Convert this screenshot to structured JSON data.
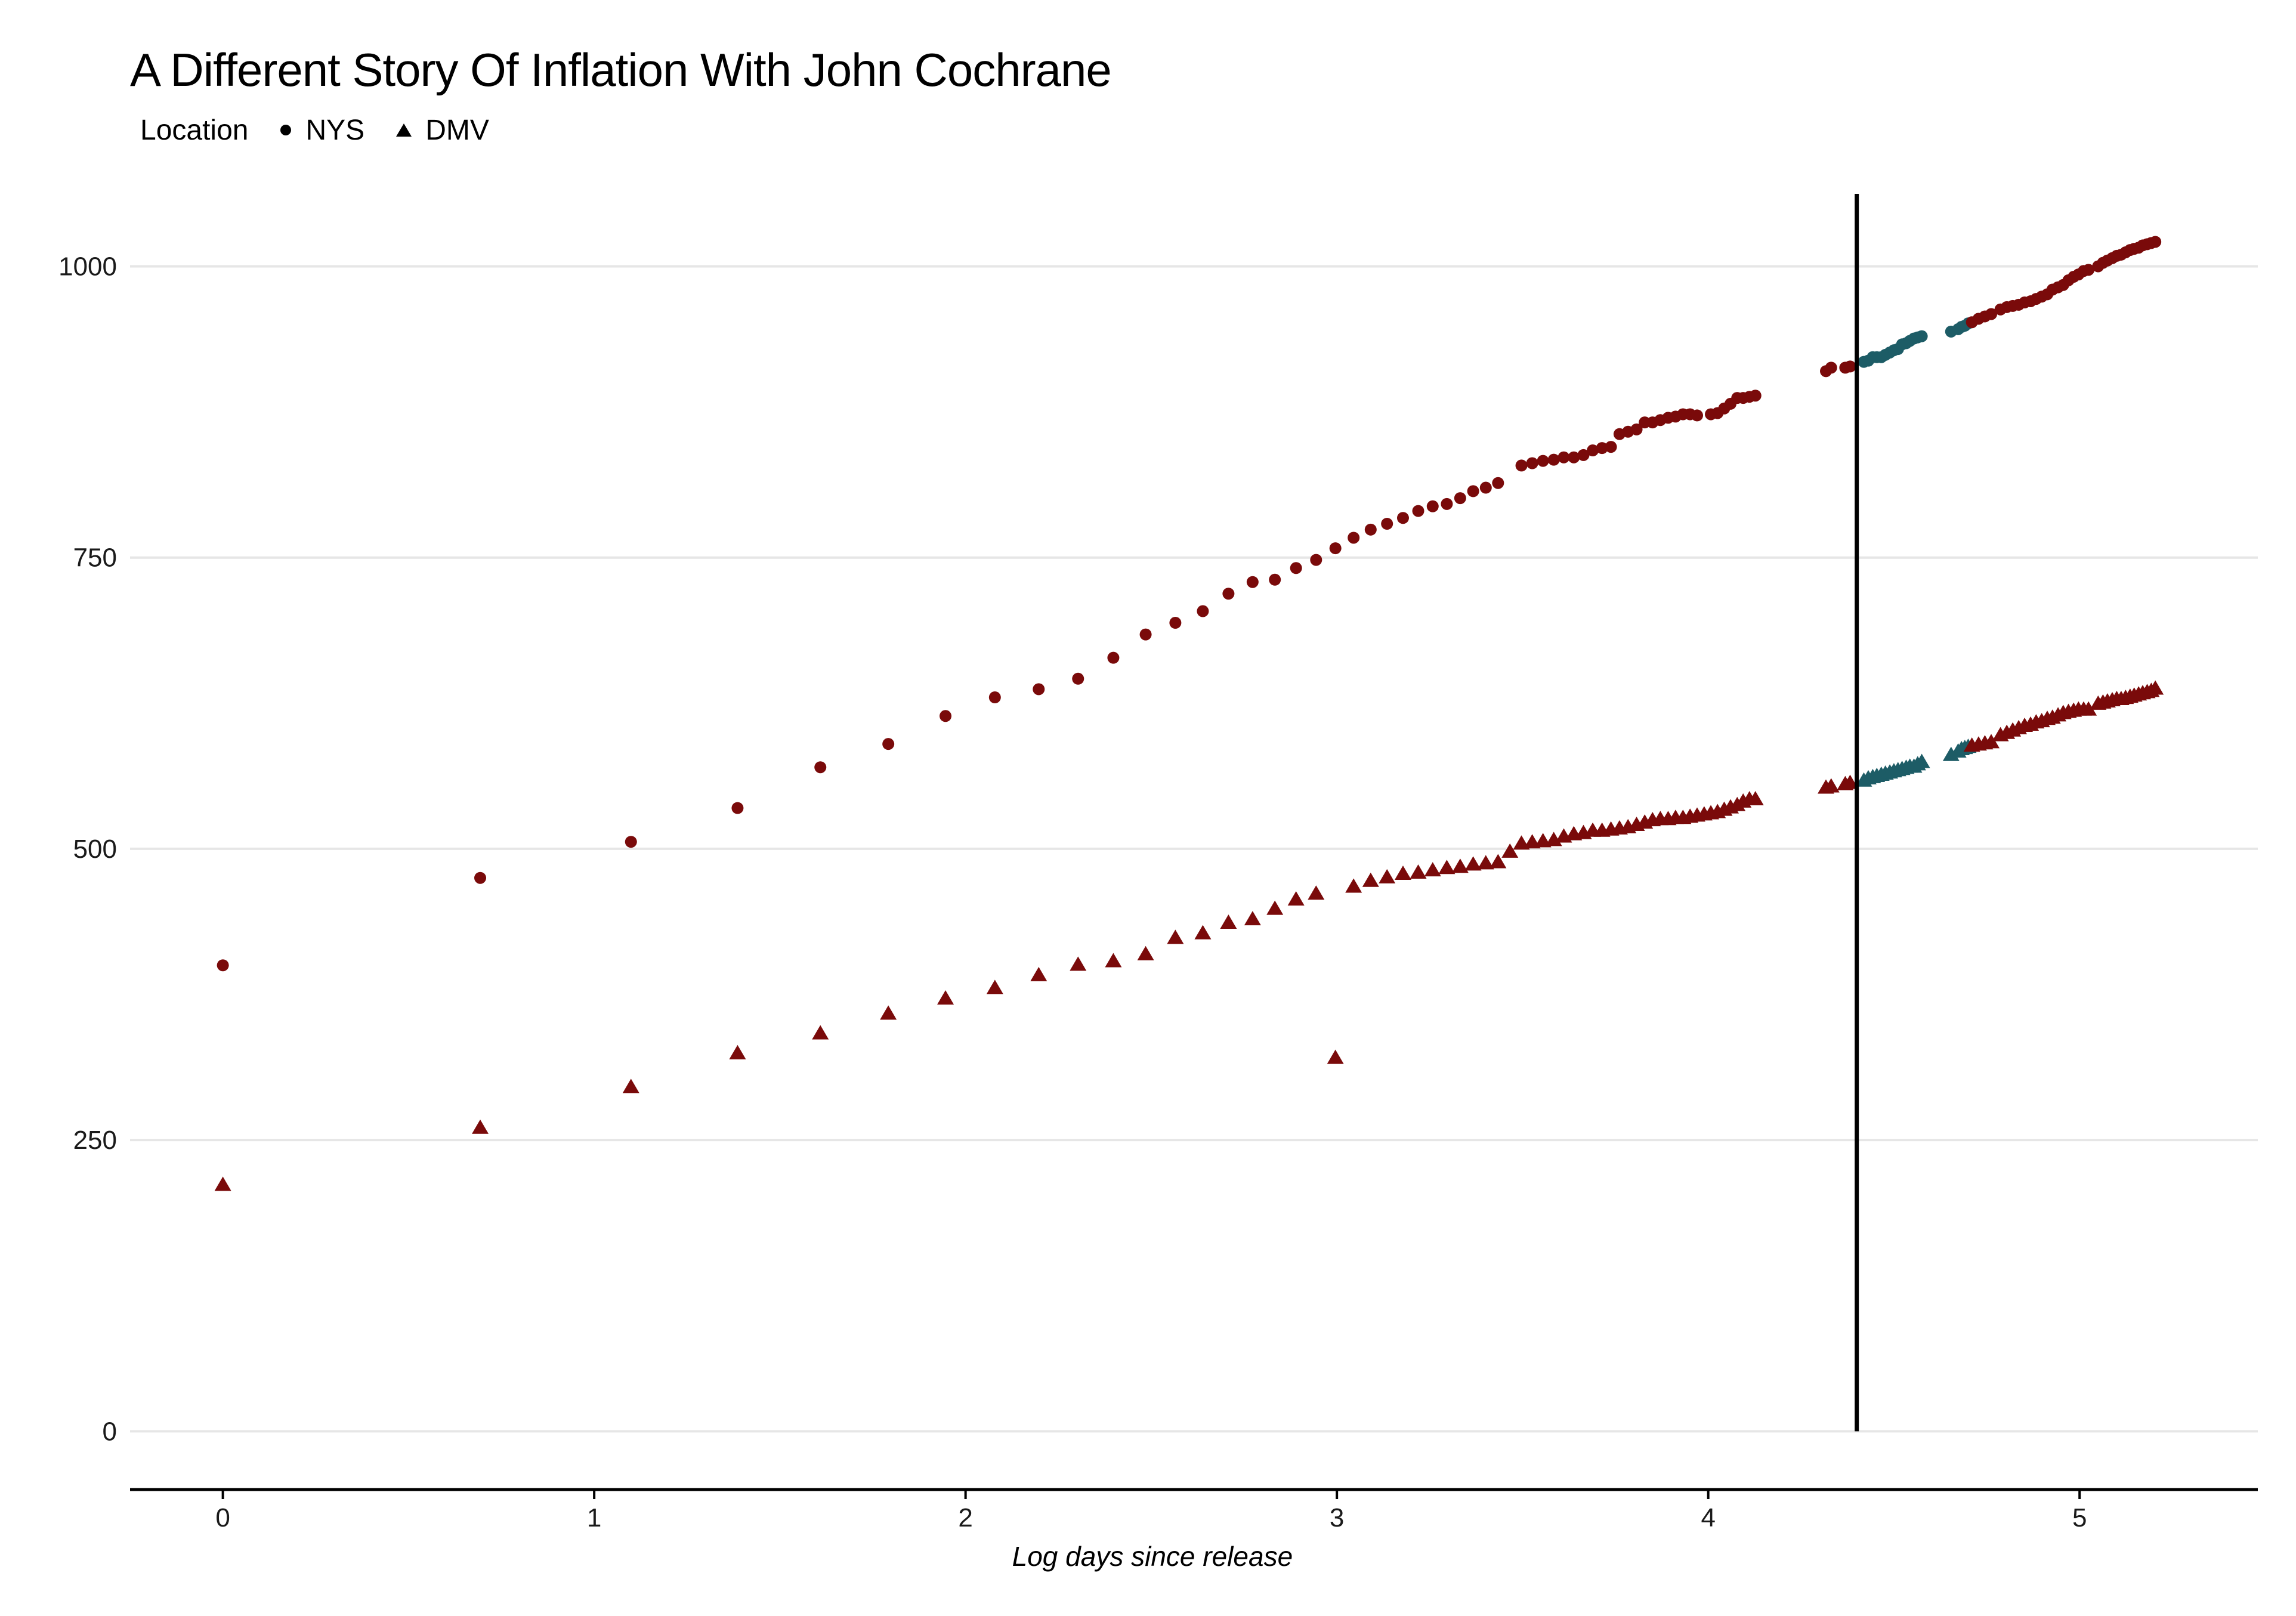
{
  "chart_data": {
    "type": "scatter",
    "title": "A Different Story Of Inflation With John Cochrane",
    "xlabel": "Log days since release",
    "ylabel": "",
    "xlim": [
      -0.25,
      5.48
    ],
    "ylim": [
      -50,
      1075
    ],
    "x_ticks": [
      0,
      1,
      2,
      3,
      4,
      5
    ],
    "y_ticks": [
      0,
      250,
      500,
      750,
      1000
    ],
    "grid": "horizontal",
    "legend": {
      "title": "Location",
      "placement": "top-left",
      "entries": [
        {
          "label": "NYS",
          "shape": "circle"
        },
        {
          "label": "DMV",
          "shape": "triangle"
        }
      ]
    },
    "vline_x": 4.4,
    "colors": {
      "primary": "#7a0a0a",
      "highlight": "#1d5c66",
      "grid": "#e6e6e6",
      "vline": "#000000"
    },
    "series": [
      {
        "name": "NYS",
        "shape": "circle",
        "points": [
          [
            0.0,
            400
          ],
          [
            0.693,
            475
          ],
          [
            1.099,
            506
          ],
          [
            1.386,
            535
          ],
          [
            1.609,
            570
          ],
          [
            1.792,
            590
          ],
          [
            1.946,
            614
          ],
          [
            2.079,
            630
          ],
          [
            2.197,
            637
          ],
          [
            2.303,
            646
          ],
          [
            2.398,
            664
          ],
          [
            2.485,
            684
          ],
          [
            2.565,
            694
          ],
          [
            2.639,
            704
          ],
          [
            2.708,
            719
          ],
          [
            2.773,
            729
          ],
          [
            2.833,
            731
          ],
          [
            2.89,
            741
          ],
          [
            2.944,
            748
          ],
          [
            2.996,
            758
          ],
          [
            3.045,
            767
          ],
          [
            3.091,
            774
          ],
          [
            3.135,
            779
          ],
          [
            3.178,
            784
          ],
          [
            3.219,
            790
          ],
          [
            3.258,
            794
          ],
          [
            3.296,
            796
          ],
          [
            3.332,
            801
          ],
          [
            3.367,
            807
          ],
          [
            3.401,
            810
          ],
          [
            3.434,
            814
          ],
          [
            3.497,
            829
          ],
          [
            3.526,
            831
          ],
          [
            3.555,
            833
          ],
          [
            3.584,
            834
          ],
          [
            3.611,
            836
          ],
          [
            3.638,
            836
          ],
          [
            3.664,
            838
          ],
          [
            3.689,
            842
          ],
          [
            3.714,
            844
          ],
          [
            3.738,
            845
          ],
          [
            3.761,
            856
          ],
          [
            3.784,
            858
          ],
          [
            3.807,
            860
          ],
          [
            3.829,
            866
          ],
          [
            3.85,
            866
          ],
          [
            3.871,
            868
          ],
          [
            3.892,
            870
          ],
          [
            3.912,
            871
          ],
          [
            3.932,
            873
          ],
          [
            3.951,
            873
          ],
          [
            3.97,
            872
          ],
          [
            4.007,
            873
          ],
          [
            4.025,
            874
          ],
          [
            4.043,
            878
          ],
          [
            4.06,
            882
          ],
          [
            4.078,
            887
          ],
          [
            4.094,
            887
          ],
          [
            4.111,
            888
          ],
          [
            4.127,
            889
          ],
          [
            4.317,
            910
          ],
          [
            4.331,
            913
          ],
          [
            4.369,
            913
          ],
          [
            4.382,
            914
          ],
          [
            4.419,
            918,
            "highlight"
          ],
          [
            4.431,
            919,
            "highlight"
          ],
          [
            4.443,
            922,
            "highlight"
          ],
          [
            4.454,
            922,
            "highlight"
          ],
          [
            4.466,
            922,
            "highlight"
          ],
          [
            4.477,
            924,
            "highlight"
          ],
          [
            4.489,
            926,
            "highlight"
          ],
          [
            4.5,
            928,
            "highlight"
          ],
          [
            4.511,
            929,
            "highlight"
          ],
          [
            4.522,
            933,
            "highlight"
          ],
          [
            4.533,
            934,
            "highlight"
          ],
          [
            4.543,
            936,
            "highlight"
          ],
          [
            4.554,
            938,
            "highlight"
          ],
          [
            4.564,
            939,
            "highlight"
          ],
          [
            4.575,
            940,
            "highlight"
          ],
          [
            4.654,
            944,
            "highlight"
          ],
          [
            4.673,
            946,
            "highlight"
          ],
          [
            4.682,
            948,
            "highlight"
          ],
          [
            4.691,
            949,
            "highlight"
          ],
          [
            4.7,
            951,
            "highlight"
          ],
          [
            4.71,
            952
          ],
          [
            4.728,
            955
          ],
          [
            4.745,
            957
          ],
          [
            4.762,
            959
          ],
          [
            4.787,
            963
          ],
          [
            4.804,
            965
          ],
          [
            4.82,
            966
          ],
          [
            4.836,
            967
          ],
          [
            4.852,
            969
          ],
          [
            4.868,
            970
          ],
          [
            4.883,
            972
          ],
          [
            4.898,
            974
          ],
          [
            4.913,
            976
          ],
          [
            4.927,
            980
          ],
          [
            4.942,
            982
          ],
          [
            4.956,
            984
          ],
          [
            4.97,
            988
          ],
          [
            4.984,
            991
          ],
          [
            4.997,
            993
          ],
          [
            5.011,
            996
          ],
          [
            5.024,
            997
          ],
          [
            5.05,
            1000
          ],
          [
            5.063,
            1003
          ],
          [
            5.075,
            1005
          ],
          [
            5.088,
            1007
          ],
          [
            5.1,
            1009
          ],
          [
            5.112,
            1010
          ],
          [
            5.124,
            1012
          ],
          [
            5.136,
            1014
          ],
          [
            5.147,
            1015
          ],
          [
            5.159,
            1016
          ],
          [
            5.17,
            1018
          ],
          [
            5.182,
            1019
          ],
          [
            5.193,
            1020
          ],
          [
            5.204,
            1021
          ]
        ]
      },
      {
        "name": "DMV",
        "shape": "triangle",
        "points": [
          [
            0.0,
            211
          ],
          [
            0.693,
            260
          ],
          [
            1.099,
            295
          ],
          [
            1.386,
            324
          ],
          [
            1.609,
            341
          ],
          [
            1.792,
            358
          ],
          [
            1.946,
            371
          ],
          [
            2.079,
            380
          ],
          [
            2.197,
            391
          ],
          [
            2.303,
            400
          ],
          [
            2.398,
            403
          ],
          [
            2.485,
            409
          ],
          [
            2.565,
            423
          ],
          [
            2.639,
            427
          ],
          [
            2.708,
            436
          ],
          [
            2.773,
            439
          ],
          [
            2.833,
            448
          ],
          [
            2.89,
            456
          ],
          [
            2.944,
            461
          ],
          [
            2.996,
            320
          ],
          [
            3.045,
            467
          ],
          [
            3.091,
            472
          ],
          [
            3.135,
            475
          ],
          [
            3.178,
            478
          ],
          [
            3.219,
            479
          ],
          [
            3.258,
            481
          ],
          [
            3.296,
            483
          ],
          [
            3.332,
            484
          ],
          [
            3.367,
            486
          ],
          [
            3.401,
            487
          ],
          [
            3.434,
            488
          ],
          [
            3.466,
            497
          ],
          [
            3.497,
            504
          ],
          [
            3.526,
            505
          ],
          [
            3.555,
            506
          ],
          [
            3.584,
            507
          ],
          [
            3.611,
            510
          ],
          [
            3.638,
            512
          ],
          [
            3.664,
            513
          ],
          [
            3.689,
            515
          ],
          [
            3.714,
            515
          ],
          [
            3.738,
            516
          ],
          [
            3.761,
            517
          ],
          [
            3.784,
            518
          ],
          [
            3.807,
            520
          ],
          [
            3.829,
            522
          ],
          [
            3.85,
            524
          ],
          [
            3.871,
            525
          ],
          [
            3.892,
            525
          ],
          [
            3.912,
            526
          ],
          [
            3.932,
            526
          ],
          [
            3.951,
            527
          ],
          [
            3.97,
            528
          ],
          [
            3.989,
            529
          ],
          [
            4.007,
            530
          ],
          [
            4.025,
            531
          ],
          [
            4.043,
            533
          ],
          [
            4.06,
            535
          ],
          [
            4.078,
            537
          ],
          [
            4.094,
            540
          ],
          [
            4.111,
            542
          ],
          [
            4.127,
            542
          ],
          [
            4.317,
            552
          ],
          [
            4.331,
            553
          ],
          [
            4.369,
            555
          ],
          [
            4.382,
            556
          ],
          [
            4.419,
            558,
            "highlight"
          ],
          [
            4.431,
            560,
            "highlight"
          ],
          [
            4.443,
            561,
            "highlight"
          ],
          [
            4.454,
            562,
            "highlight"
          ],
          [
            4.466,
            563,
            "highlight"
          ],
          [
            4.477,
            564,
            "highlight"
          ],
          [
            4.489,
            565,
            "highlight"
          ],
          [
            4.5,
            566,
            "highlight"
          ],
          [
            4.511,
            567,
            "highlight"
          ],
          [
            4.522,
            568,
            "highlight"
          ],
          [
            4.533,
            569,
            "highlight"
          ],
          [
            4.543,
            570,
            "highlight"
          ],
          [
            4.554,
            570,
            "highlight"
          ],
          [
            4.564,
            572,
            "highlight"
          ],
          [
            4.575,
            574,
            "highlight"
          ],
          [
            4.654,
            580,
            "highlight"
          ],
          [
            4.673,
            583,
            "highlight"
          ],
          [
            4.682,
            585,
            "highlight"
          ],
          [
            4.691,
            586,
            "highlight"
          ],
          [
            4.7,
            587,
            "highlight"
          ],
          [
            4.71,
            588
          ],
          [
            4.728,
            589
          ],
          [
            4.745,
            590
          ],
          [
            4.762,
            591
          ],
          [
            4.787,
            597
          ],
          [
            4.804,
            599
          ],
          [
            4.82,
            601
          ],
          [
            4.836,
            603
          ],
          [
            4.852,
            605
          ],
          [
            4.868,
            606
          ],
          [
            4.883,
            608
          ],
          [
            4.898,
            609
          ],
          [
            4.913,
            611
          ],
          [
            4.927,
            612
          ],
          [
            4.942,
            614
          ],
          [
            4.956,
            616
          ],
          [
            4.97,
            617
          ],
          [
            4.984,
            618
          ],
          [
            4.997,
            619
          ],
          [
            5.011,
            619
          ],
          [
            5.024,
            619
          ],
          [
            5.05,
            624
          ],
          [
            5.063,
            625
          ],
          [
            5.075,
            626
          ],
          [
            5.088,
            627
          ],
          [
            5.1,
            628
          ],
          [
            5.112,
            628
          ],
          [
            5.124,
            629
          ],
          [
            5.136,
            630
          ],
          [
            5.147,
            631
          ],
          [
            5.159,
            632
          ],
          [
            5.17,
            633
          ],
          [
            5.182,
            634
          ],
          [
            5.193,
            635
          ],
          [
            5.204,
            637
          ]
        ]
      }
    ]
  }
}
